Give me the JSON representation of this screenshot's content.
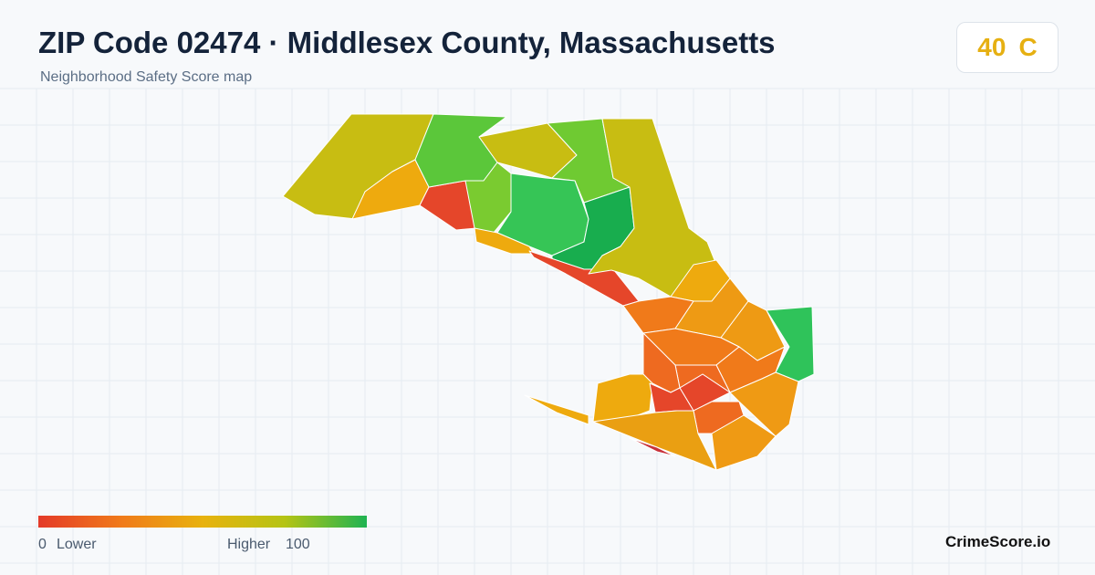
{
  "header": {
    "title": "ZIP Code 02474 · Middlesex County, Massachusetts",
    "subtitle": "Neighborhood Safety Score map"
  },
  "badge": {
    "score": 40,
    "grade": "C"
  },
  "legend": {
    "min": 0,
    "low_label": "Lower",
    "high_label": "Higher",
    "max": 100
  },
  "footer": {
    "brand": "CrimeScore.io"
  }
}
